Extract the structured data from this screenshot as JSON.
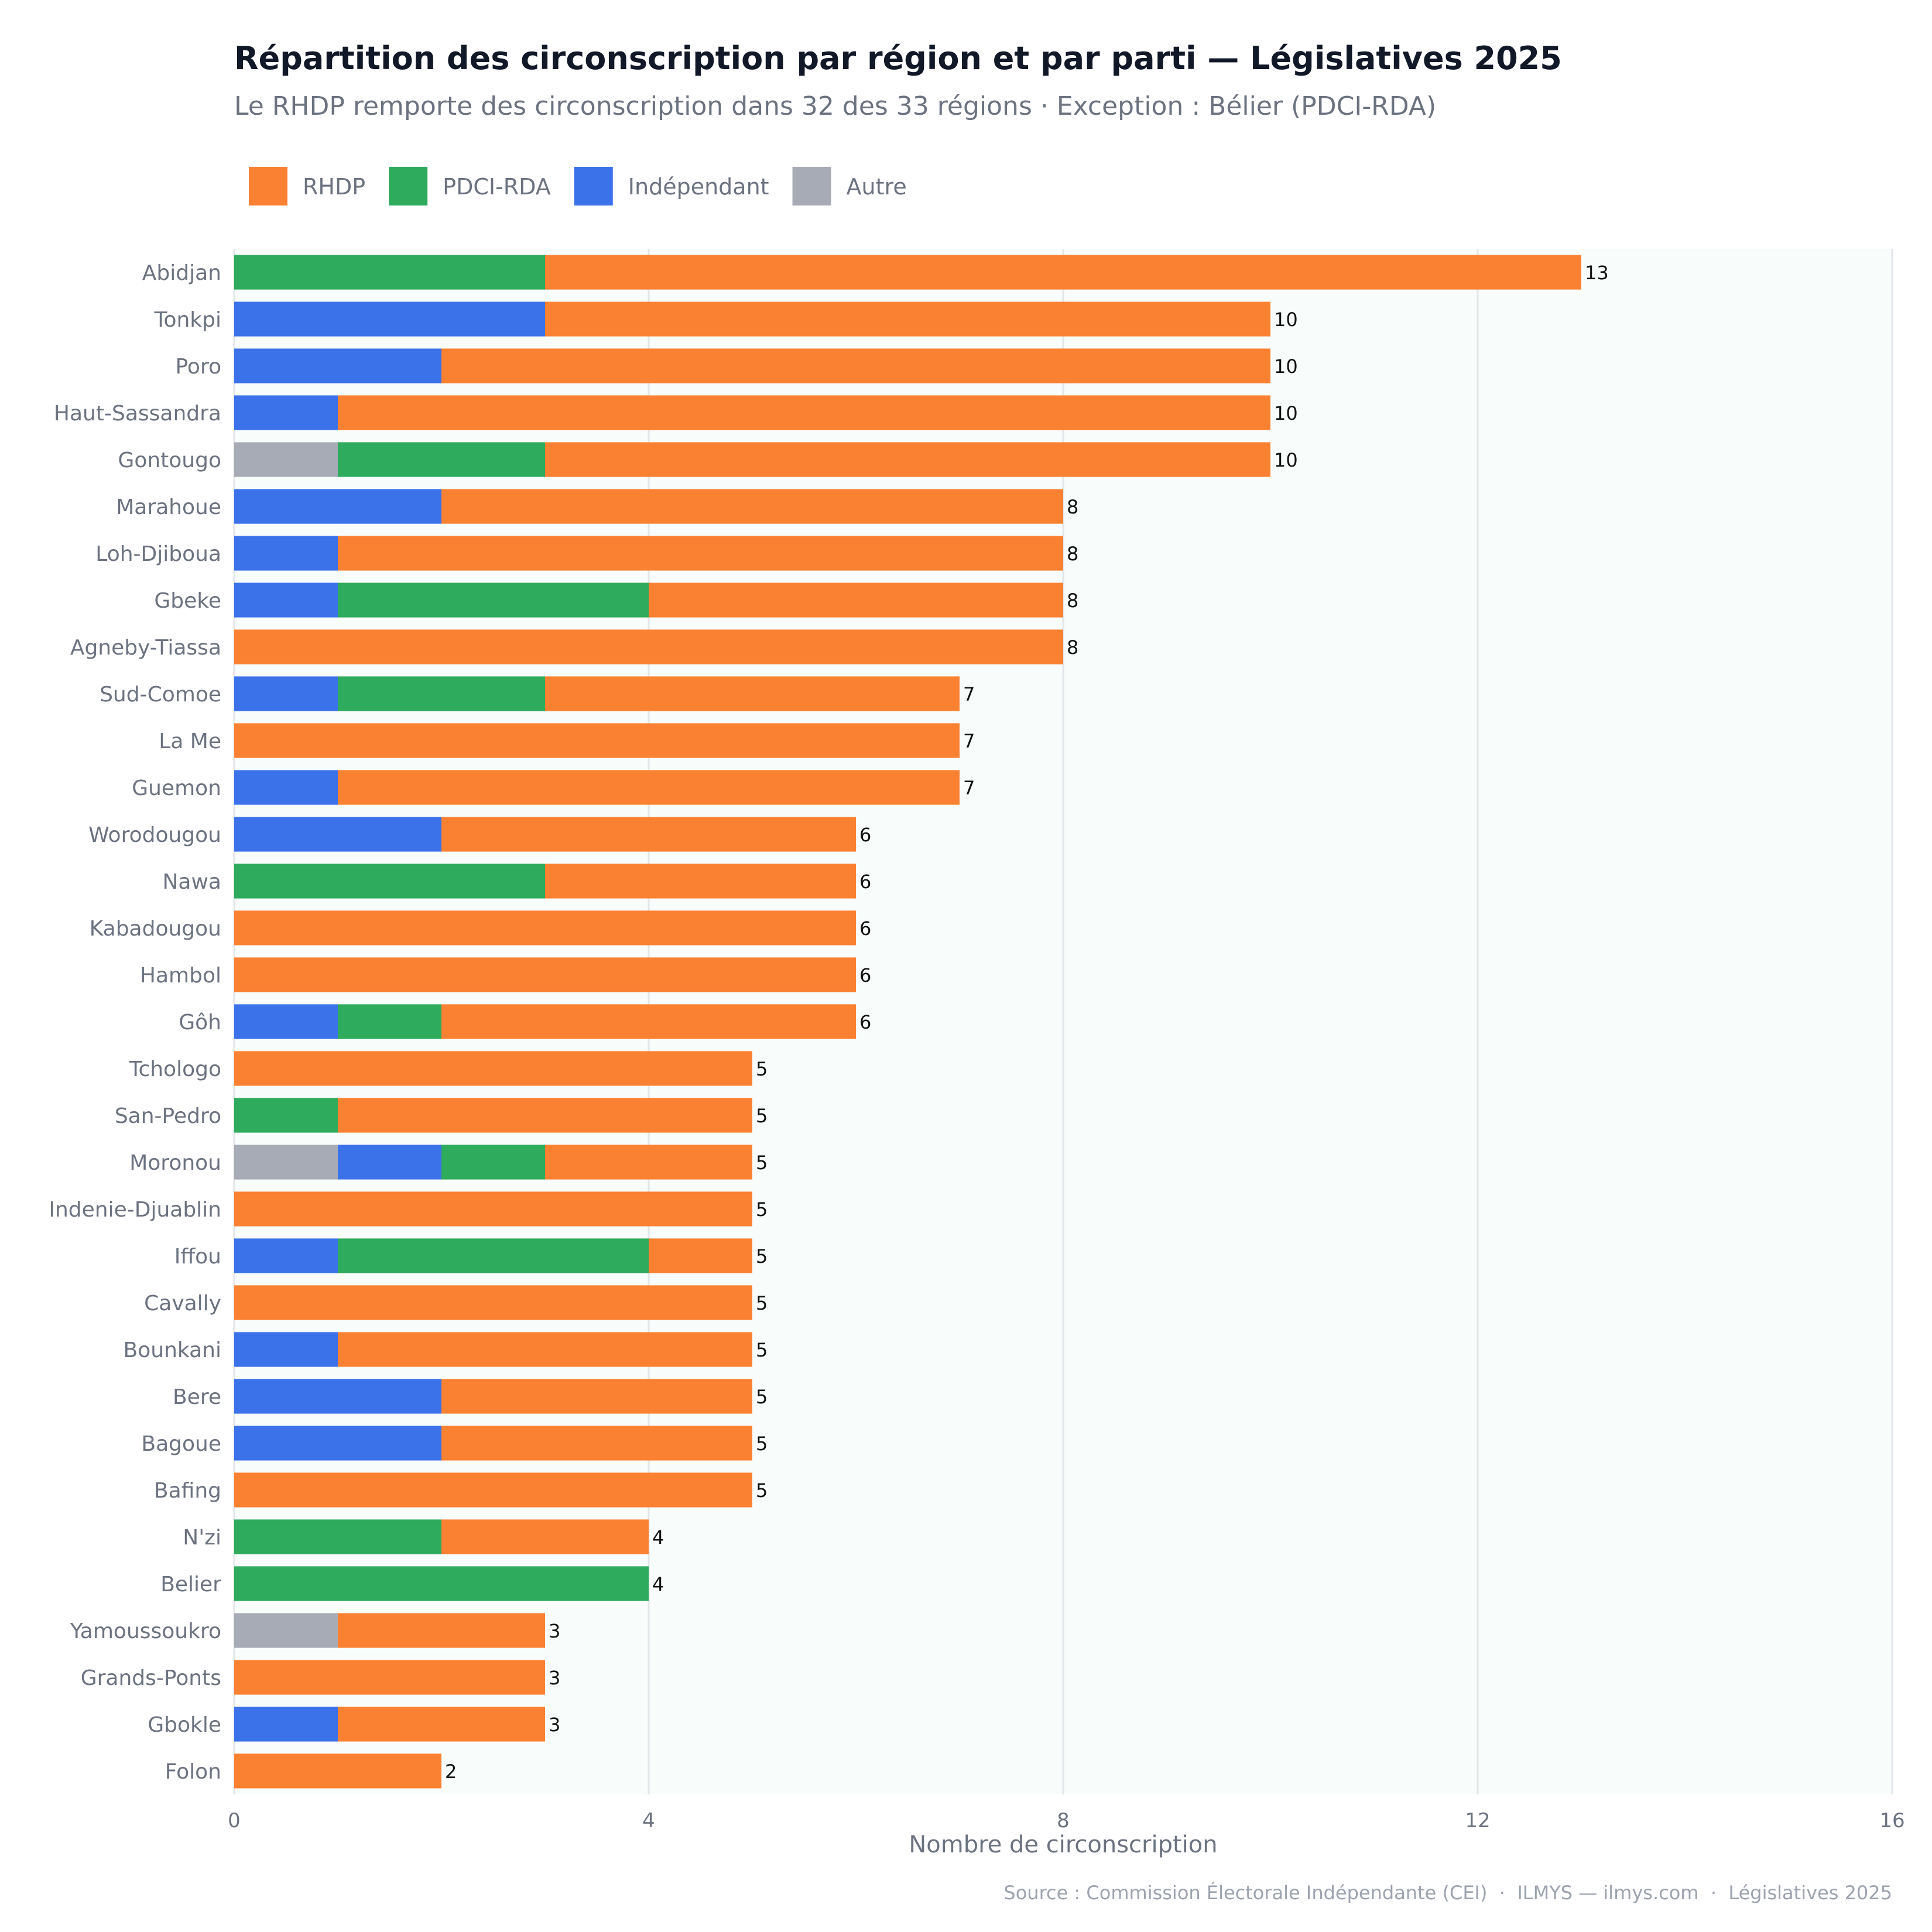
{
  "chart_data": {
    "type": "bar",
    "orientation": "horizontal",
    "stacked": true,
    "title": "Répartition des circonscription par région et par parti — Législatives 2025",
    "subtitle": "Le RHDP remporte des circonscription dans 32 des 33 régions · Exception : Bélier (PDCI-RDA)",
    "xlabel": "Nombre de circonscription",
    "ylabel": "",
    "xlim": [
      0,
      16
    ],
    "xticks": [
      0,
      4,
      8,
      12,
      16
    ],
    "grid": true,
    "legend_position": "top-left",
    "categories": [
      "Abidjan",
      "Tonkpi",
      "Poro",
      "Haut-Sassandra",
      "Gontougo",
      "Marahoue",
      "Loh-Djiboua",
      "Gbeke",
      "Agneby-Tiassa",
      "Sud-Comoe",
      "La Me",
      "Guemon",
      "Worodougou",
      "Nawa",
      "Kabadougou",
      "Hambol",
      "Gôh",
      "Tchologo",
      "San-Pedro",
      "Moronou",
      "Indenie-Djuablin",
      "Iffou",
      "Cavally",
      "Bounkani",
      "Bere",
      "Bagoue",
      "Bafing",
      "N'zi",
      "Belier",
      "Yamoussoukro",
      "Grands-Ponts",
      "Gbokle",
      "Folon"
    ],
    "stack_order": [
      "Autre",
      "Indépendant",
      "PDCI-RDA",
      "RHDP"
    ],
    "series": [
      {
        "name": "RHDP",
        "color": "#fb8132",
        "values": [
          10,
          7,
          8,
          9,
          7,
          6,
          7,
          4,
          8,
          4,
          7,
          6,
          4,
          3,
          6,
          6,
          4,
          5,
          4,
          2,
          5,
          1,
          5,
          4,
          3,
          3,
          5,
          2,
          0,
          2,
          3,
          2,
          2
        ]
      },
      {
        "name": "PDCI-RDA",
        "color": "#2eab5c",
        "values": [
          3,
          0,
          0,
          0,
          2,
          0,
          0,
          3,
          0,
          2,
          0,
          0,
          0,
          3,
          0,
          0,
          1,
          0,
          1,
          1,
          0,
          3,
          0,
          0,
          0,
          0,
          0,
          2,
          4,
          0,
          0,
          0,
          0
        ]
      },
      {
        "name": "Indépendant",
        "color": "#3b72ea",
        "values": [
          0,
          3,
          2,
          1,
          0,
          2,
          1,
          1,
          0,
          1,
          0,
          1,
          2,
          0,
          0,
          0,
          1,
          0,
          0,
          1,
          0,
          1,
          0,
          1,
          2,
          2,
          0,
          0,
          0,
          0,
          0,
          1,
          0
        ]
      },
      {
        "name": "Autre",
        "color": "#a7abb5",
        "values": [
          0,
          0,
          0,
          0,
          1,
          0,
          0,
          0,
          0,
          0,
          0,
          0,
          0,
          0,
          0,
          0,
          0,
          0,
          0,
          1,
          0,
          0,
          0,
          0,
          0,
          0,
          0,
          0,
          0,
          1,
          0,
          0,
          0
        ]
      }
    ],
    "totals": [
      13,
      10,
      10,
      10,
      10,
      8,
      8,
      8,
      8,
      7,
      7,
      7,
      6,
      6,
      6,
      6,
      6,
      5,
      5,
      5,
      5,
      5,
      5,
      5,
      5,
      5,
      5,
      4,
      4,
      3,
      3,
      3,
      2
    ],
    "source": "Source : Commission Électorale Indépendante (CEI)  ·  ILMYS — ilmys.com  ·  Législatives 2025"
  }
}
